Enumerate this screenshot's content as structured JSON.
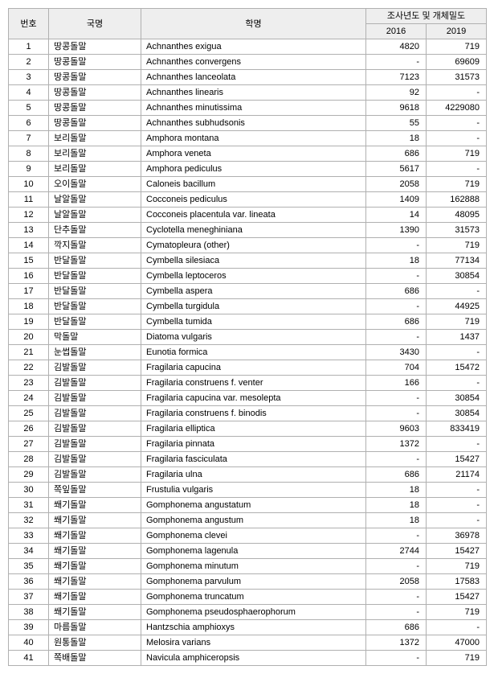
{
  "header": {
    "col_no": "번호",
    "col_kor": "국명",
    "col_sci": "학명",
    "col_density": "조사년도 및 개체밀도",
    "year_2016": "2016",
    "year_2019": "2019"
  },
  "rows": [
    {
      "no": "1",
      "kor": "땅콩돌말",
      "sci": "Achnanthes exigua",
      "y2016": "4820",
      "y2019": "719"
    },
    {
      "no": "2",
      "kor": "땅콩돌말",
      "sci": "Achnanthes convergens",
      "y2016": "-",
      "y2019": "69609"
    },
    {
      "no": "3",
      "kor": "땅콩돌말",
      "sci": "Achnanthes lanceolata",
      "y2016": "7123",
      "y2019": "31573"
    },
    {
      "no": "4",
      "kor": "땅콩돌말",
      "sci": "Achnanthes linearis",
      "y2016": "92",
      "y2019": "-"
    },
    {
      "no": "5",
      "kor": "땅콩돌말",
      "sci": "Achnanthes minutissima",
      "y2016": "9618",
      "y2019": "4229080"
    },
    {
      "no": "6",
      "kor": "땅콩돌말",
      "sci": "Achnanthes subhudsonis",
      "y2016": "55",
      "y2019": "-"
    },
    {
      "no": "7",
      "kor": "보리돌말",
      "sci": "Amphora montana",
      "y2016": "18",
      "y2019": "-"
    },
    {
      "no": "8",
      "kor": "보리돌말",
      "sci": "Amphora veneta",
      "y2016": "686",
      "y2019": "719"
    },
    {
      "no": "9",
      "kor": "보리돌말",
      "sci": "Amphora pediculus",
      "y2016": "5617",
      "y2019": "-"
    },
    {
      "no": "10",
      "kor": "오이돌말",
      "sci": "Caloneis bacillum",
      "y2016": "2058",
      "y2019": "719"
    },
    {
      "no": "11",
      "kor": "날알돌말",
      "sci": "Cocconeis pediculus",
      "y2016": "1409",
      "y2019": "162888"
    },
    {
      "no": "12",
      "kor": "날알돌말",
      "sci": "Cocconeis placentula var. lineata",
      "y2016": "14",
      "y2019": "48095"
    },
    {
      "no": "13",
      "kor": "단추돌말",
      "sci": "Cyclotella meneghiniana",
      "y2016": "1390",
      "y2019": "31573"
    },
    {
      "no": "14",
      "kor": "깍지돌말",
      "sci": "Cymatopleura (other)",
      "y2016": "-",
      "y2019": "719"
    },
    {
      "no": "15",
      "kor": "반달돌말",
      "sci": "Cymbella silesiaca",
      "y2016": "18",
      "y2019": "77134"
    },
    {
      "no": "16",
      "kor": "반달돌말",
      "sci": "Cymbella leptoceros",
      "y2016": "-",
      "y2019": "30854"
    },
    {
      "no": "17",
      "kor": "반달돌말",
      "sci": "Cymbella aspera",
      "y2016": "686",
      "y2019": "-"
    },
    {
      "no": "18",
      "kor": "반달돌말",
      "sci": "Cymbella turgidula",
      "y2016": "-",
      "y2019": "44925"
    },
    {
      "no": "19",
      "kor": "반달돌말",
      "sci": "Cymbella tumida",
      "y2016": "686",
      "y2019": "719"
    },
    {
      "no": "20",
      "kor": "막돌말",
      "sci": "Diatoma vulgaris",
      "y2016": "-",
      "y2019": "1437"
    },
    {
      "no": "21",
      "kor": "눈썹돌말",
      "sci": "Eunotia formica",
      "y2016": "3430",
      "y2019": "-"
    },
    {
      "no": "22",
      "kor": "김발돌말",
      "sci": "Fragilaria capucina",
      "y2016": "704",
      "y2019": "15472"
    },
    {
      "no": "23",
      "kor": "김발돌말",
      "sci": "Fragilaria construens f. venter",
      "y2016": "166",
      "y2019": "-"
    },
    {
      "no": "24",
      "kor": "김발돌말",
      "sci": "Fragilaria capucina var. mesolepta",
      "y2016": "-",
      "y2019": "30854"
    },
    {
      "no": "25",
      "kor": "김발돌말",
      "sci": "Fragilaria construens f. binodis",
      "y2016": "-",
      "y2019": "30854"
    },
    {
      "no": "26",
      "kor": "김발돌말",
      "sci": "Fragilaria elliptica",
      "y2016": "9603",
      "y2019": "833419"
    },
    {
      "no": "27",
      "kor": "김발돌말",
      "sci": "Fragilaria pinnata",
      "y2016": "1372",
      "y2019": "-"
    },
    {
      "no": "28",
      "kor": "김발돌말",
      "sci": "Fragilaria fasciculata",
      "y2016": "-",
      "y2019": "15427"
    },
    {
      "no": "29",
      "kor": "김발돌말",
      "sci": "Fragilaria ulna",
      "y2016": "686",
      "y2019": "21174"
    },
    {
      "no": "30",
      "kor": "쪽잎돌말",
      "sci": "Frustulia vulgaris",
      "y2016": "18",
      "y2019": "-"
    },
    {
      "no": "31",
      "kor": "쐐기돌말",
      "sci": "Gomphonema angustatum",
      "y2016": "18",
      "y2019": "-"
    },
    {
      "no": "32",
      "kor": "쐐기돌말",
      "sci": "Gomphonema angustum",
      "y2016": "18",
      "y2019": "-"
    },
    {
      "no": "33",
      "kor": "쐐기돌말",
      "sci": "Gomphonema clevei",
      "y2016": "-",
      "y2019": "36978"
    },
    {
      "no": "34",
      "kor": "쐐기돌말",
      "sci": "Gomphonema lagenula",
      "y2016": "2744",
      "y2019": "15427"
    },
    {
      "no": "35",
      "kor": "쐐기돌말",
      "sci": "Gomphonema minutum",
      "y2016": "-",
      "y2019": "719"
    },
    {
      "no": "36",
      "kor": "쐐기돌말",
      "sci": "Gomphonema parvulum",
      "y2016": "2058",
      "y2019": "17583"
    },
    {
      "no": "37",
      "kor": "쐐기돌말",
      "sci": "Gomphonema truncatum",
      "y2016": "-",
      "y2019": "15427"
    },
    {
      "no": "38",
      "kor": "쐐기돌말",
      "sci": "Gomphonema pseudosphaerophorum",
      "y2016": "-",
      "y2019": "719"
    },
    {
      "no": "39",
      "kor": "마름돌말",
      "sci": "Hantzschia amphioxys",
      "y2016": "686",
      "y2019": "-"
    },
    {
      "no": "40",
      "kor": "원통돌말",
      "sci": "Melosira varians",
      "y2016": "1372",
      "y2019": "47000"
    },
    {
      "no": "41",
      "kor": "쪽배돌말",
      "sci": "Navicula amphiceropsis",
      "y2016": "-",
      "y2019": "719"
    }
  ]
}
